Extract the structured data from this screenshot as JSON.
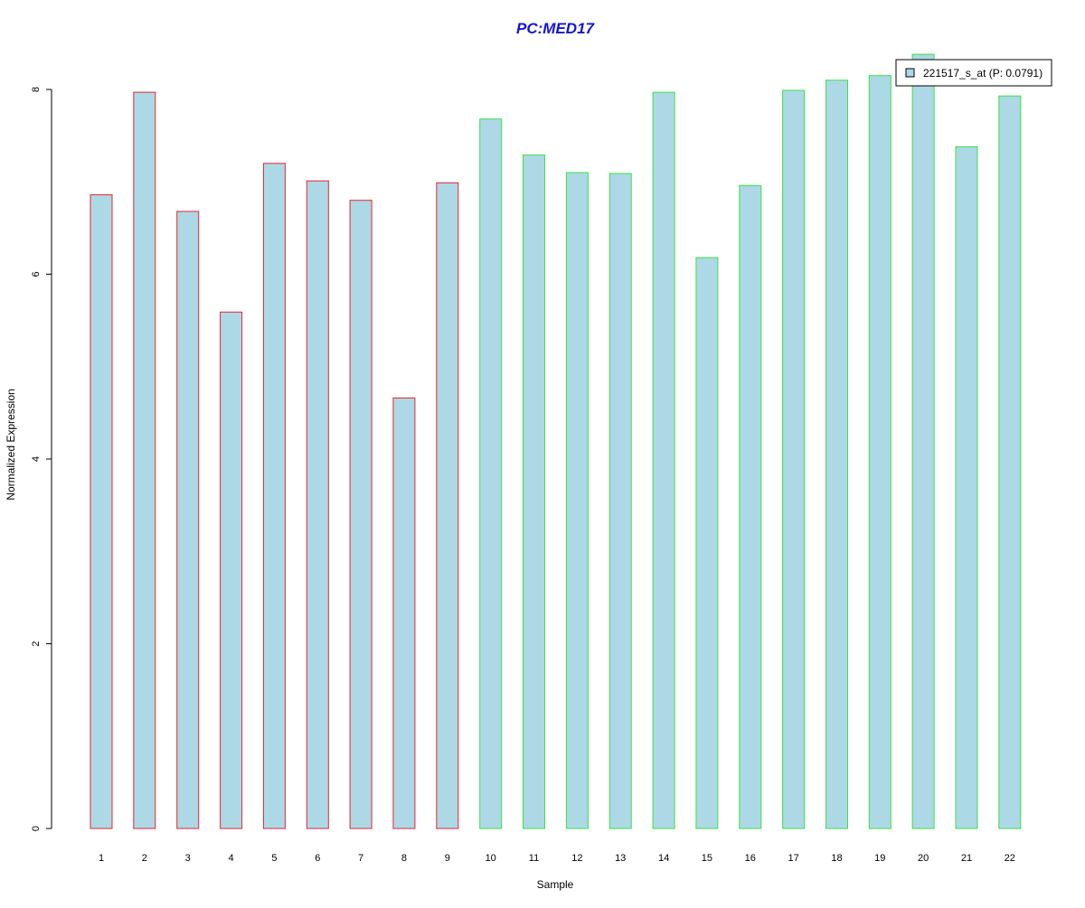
{
  "chart_data": {
    "type": "bar",
    "title": "PC:MED17",
    "xlabel": "Sample",
    "ylabel": "Normalized Expression",
    "categories": [
      "1",
      "2",
      "3",
      "4",
      "5",
      "6",
      "7",
      "8",
      "9",
      "10",
      "11",
      "12",
      "13",
      "14",
      "15",
      "16",
      "17",
      "18",
      "19",
      "20",
      "21",
      "22"
    ],
    "series": [
      {
        "name": "221517_s_at (P: 0.0791)",
        "values": [
          6.86,
          7.97,
          6.68,
          5.59,
          7.2,
          7.01,
          6.8,
          4.66,
          6.99,
          7.68,
          7.29,
          7.1,
          7.09,
          7.97,
          6.18,
          6.96,
          7.99,
          8.1,
          8.15,
          8.38,
          7.38,
          7.93
        ]
      }
    ],
    "groups": [
      {
        "samples": [
          1,
          2,
          3,
          4,
          5,
          6,
          7,
          8,
          9
        ],
        "border_color": "#e8262d"
      },
      {
        "samples": [
          10,
          11,
          12,
          13,
          14,
          15,
          16,
          17,
          18,
          19,
          20,
          21,
          22
        ],
        "border_color": "#3ae244"
      }
    ],
    "ylim": [
      0,
      8.4
    ],
    "yticks": [
      0,
      2,
      4,
      6,
      8
    ],
    "grid": false,
    "legend_position": "top-right",
    "colors": {
      "title": "#1414d8",
      "bar_fill": "#add8e6",
      "text": "#000000"
    }
  }
}
